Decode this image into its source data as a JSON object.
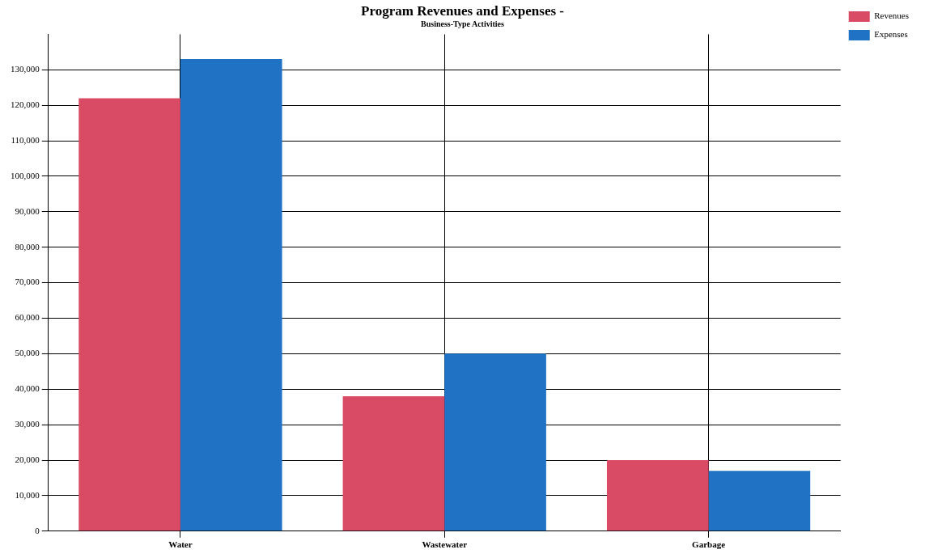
{
  "chart_data": {
    "type": "bar",
    "title": "Program Revenues and Expenses -",
    "subtitle": "Business-Type Activities",
    "categories": [
      "Water",
      "Wastewater",
      "Garbage"
    ],
    "series": [
      {
        "name": "Revenues",
        "color": "#d94a64",
        "values": [
          122000,
          38000,
          20000
        ]
      },
      {
        "name": "Expenses",
        "color": "#1f72c4",
        "values": [
          133000,
          50000,
          17000
        ]
      }
    ],
    "ylim": [
      0,
      140000
    ],
    "yticks": [
      0,
      {
        "value": 10000,
        "label": "10,000"
      },
      {
        "value": 20000,
        "label": "20,000"
      },
      {
        "value": 30000,
        "label": "30,000"
      },
      {
        "value": 40000,
        "label": "40,000"
      },
      {
        "value": 50000,
        "label": "50,000"
      },
      {
        "value": 60000,
        "label": "60,000"
      },
      {
        "value": 70000,
        "label": "70,000"
      },
      {
        "value": 80000,
        "label": "80,000"
      },
      {
        "value": 90000,
        "label": "90,000"
      },
      {
        "value": 100000,
        "label": "100,000"
      },
      {
        "value": 110000,
        "label": "110,000"
      },
      {
        "value": 120000,
        "label": "120,000"
      },
      {
        "value": 130000,
        "label": "130,000"
      }
    ],
    "grid": true,
    "legend": "top right"
  }
}
